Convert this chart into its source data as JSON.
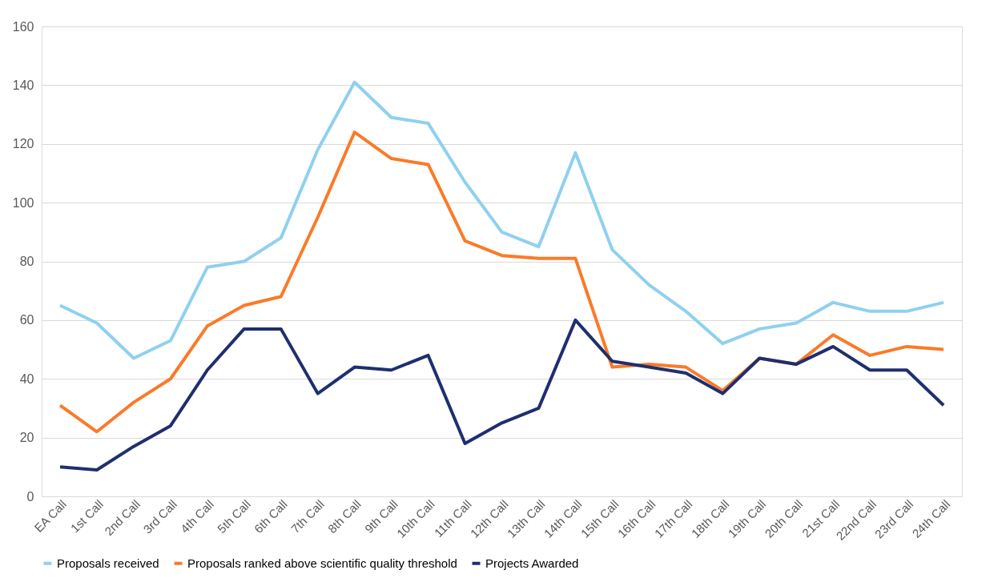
{
  "chart_data": {
    "type": "line",
    "categories": [
      "EA Call",
      "1st Call",
      "2nd Call",
      "3rd Call",
      "4th Call",
      "5th Call",
      "6th Call",
      "7th Call",
      "8th Call",
      "9th Call",
      "10th Call",
      "11th Call",
      "12th Call",
      "13th Call",
      "14th Call",
      "15th Call",
      "16th Call",
      "17th Call",
      "18th Call",
      "19th Call",
      "20th Call",
      "21st Call",
      "22nd Call",
      "23rd Call",
      "24th Call"
    ],
    "series": [
      {
        "name": "Proposals received",
        "color": "#8fd0ef",
        "values": [
          65,
          59,
          47,
          53,
          78,
          80,
          88,
          118,
          141,
          129,
          127,
          107,
          90,
          85,
          117,
          84,
          72,
          63,
          52,
          57,
          59,
          66,
          63,
          63,
          66
        ]
      },
      {
        "name": "Proposals ranked above scientific quality threshold",
        "color": "#fb7a28",
        "values": [
          31,
          22,
          32,
          40,
          58,
          65,
          68,
          95,
          124,
          115,
          113,
          87,
          82,
          81,
          81,
          44,
          45,
          44,
          36,
          47,
          45,
          55,
          48,
          51,
          50
        ]
      },
      {
        "name": "Projects Awarded",
        "color": "#1f2f6e",
        "values": [
          10,
          9,
          17,
          24,
          43,
          57,
          57,
          35,
          44,
          43,
          48,
          18,
          25,
          30,
          60,
          46,
          44,
          42,
          35,
          47,
          45,
          51,
          43,
          43,
          31
        ]
      }
    ],
    "ylim": [
      0,
      160
    ],
    "yticks": [
      0,
      20,
      40,
      60,
      80,
      100,
      120,
      140,
      160
    ],
    "grid": "y",
    "legend": "bottom",
    "marker": "none",
    "line_style": "solid"
  }
}
